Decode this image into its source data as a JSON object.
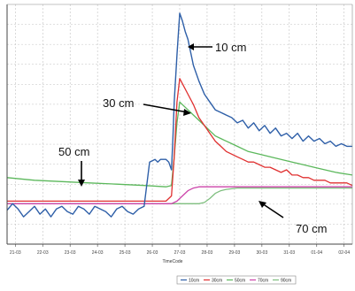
{
  "chart_data": {
    "type": "line",
    "xlabel": "TimeCode",
    "ylabel": "",
    "grid": true,
    "categories": [
      "21-03",
      "22-03",
      "23-03",
      "24-03",
      "25-03",
      "26-03",
      "27-03",
      "28-03",
      "29-03",
      "30-03",
      "31-03",
      "01-04",
      "02-04"
    ],
    "xlim": [
      0,
      12.6
    ],
    "ylim": [
      0,
      1
    ],
    "series": [
      {
        "name": "10 cm",
        "color": "#2e5fa8",
        "x": [
          0,
          0.2,
          0.4,
          0.6,
          0.8,
          1.0,
          1.2,
          1.4,
          1.6,
          1.8,
          2.0,
          2.2,
          2.4,
          2.6,
          2.8,
          3.0,
          3.2,
          3.4,
          3.6,
          3.8,
          4.0,
          4.2,
          4.4,
          4.6,
          4.8,
          5.0,
          5.2,
          5.4,
          5.5,
          5.6,
          5.8,
          5.9,
          6.0,
          6.05,
          6.1,
          6.2,
          6.3,
          6.4,
          6.5,
          6.6,
          6.8,
          7.0,
          7.2,
          7.4,
          7.6,
          7.8,
          8.0,
          8.2,
          8.4,
          8.6,
          8.8,
          9.0,
          9.2,
          9.4,
          9.6,
          9.8,
          10.0,
          10.2,
          10.4,
          10.6,
          10.8,
          11.0,
          11.2,
          11.4,
          11.6,
          11.8,
          12.0,
          12.2,
          12.4,
          12.6
        ],
        "values": [
          0.245,
          0.27,
          0.25,
          0.22,
          0.24,
          0.26,
          0.23,
          0.25,
          0.22,
          0.25,
          0.26,
          0.24,
          0.23,
          0.26,
          0.25,
          0.23,
          0.26,
          0.25,
          0.24,
          0.22,
          0.25,
          0.26,
          0.24,
          0.23,
          0.25,
          0.26,
          0.43,
          0.44,
          0.43,
          0.44,
          0.44,
          0.43,
          0.4,
          0.52,
          0.66,
          0.84,
          1.0,
          0.97,
          0.93,
          0.9,
          0.8,
          0.74,
          0.69,
          0.66,
          0.63,
          0.62,
          0.61,
          0.6,
          0.58,
          0.59,
          0.56,
          0.58,
          0.55,
          0.57,
          0.54,
          0.56,
          0.53,
          0.54,
          0.52,
          0.54,
          0.51,
          0.53,
          0.51,
          0.52,
          0.5,
          0.51,
          0.49,
          0.5,
          0.49,
          0.49
        ]
      },
      {
        "name": "30 cm",
        "color": "#e03030",
        "x": [
          0,
          1,
          2,
          3,
          4,
          5,
          5.8,
          6.0,
          6.1,
          6.2,
          6.3,
          6.4,
          6.6,
          6.8,
          7.0,
          7.2,
          7.4,
          7.6,
          7.8,
          8.0,
          8.2,
          8.4,
          8.6,
          8.8,
          9.0,
          9.2,
          9.4,
          9.6,
          9.8,
          10.0,
          10.2,
          10.4,
          10.6,
          10.8,
          11.0,
          11.2,
          11.4,
          11.6,
          11.8,
          12.0,
          12.2,
          12.4,
          12.6
        ],
        "values": [
          0.28,
          0.28,
          0.28,
          0.28,
          0.28,
          0.28,
          0.28,
          0.3,
          0.45,
          0.66,
          0.75,
          0.73,
          0.69,
          0.65,
          0.6,
          0.57,
          0.54,
          0.51,
          0.49,
          0.47,
          0.46,
          0.45,
          0.44,
          0.43,
          0.43,
          0.42,
          0.41,
          0.41,
          0.4,
          0.39,
          0.4,
          0.38,
          0.38,
          0.37,
          0.37,
          0.36,
          0.36,
          0.36,
          0.35,
          0.35,
          0.35,
          0.35,
          0.34
        ]
      },
      {
        "name": "50 cm",
        "color": "#5cb85c",
        "x": [
          0,
          1,
          2,
          3,
          4,
          5,
          5.8,
          6.0,
          6.1,
          6.2,
          6.3,
          6.4,
          6.6,
          6.8,
          7.0,
          7.2,
          7.4,
          7.6,
          7.8,
          8.0,
          8.4,
          8.8,
          9.2,
          9.6,
          10.0,
          10.4,
          10.8,
          11.2,
          11.6,
          12.0,
          12.6
        ],
        "values": [
          0.37,
          0.36,
          0.355,
          0.35,
          0.345,
          0.34,
          0.335,
          0.34,
          0.45,
          0.58,
          0.66,
          0.65,
          0.63,
          0.61,
          0.59,
          0.57,
          0.55,
          0.53,
          0.52,
          0.51,
          0.49,
          0.47,
          0.46,
          0.45,
          0.44,
          0.43,
          0.42,
          0.41,
          0.4,
          0.39,
          0.38
        ]
      },
      {
        "name": "70 cm",
        "color": "#cc44aa",
        "x": [
          0,
          1,
          2,
          3,
          4,
          5,
          5.8,
          6.0,
          6.2,
          6.4,
          6.6,
          6.8,
          7.0,
          7.4,
          7.8,
          8.2,
          8.6,
          9.0,
          9.4,
          9.8,
          10.2,
          10.6,
          11.0,
          11.4,
          11.8,
          12.2,
          12.6
        ],
        "values": [
          0.27,
          0.27,
          0.27,
          0.27,
          0.27,
          0.27,
          0.27,
          0.27,
          0.28,
          0.3,
          0.32,
          0.33,
          0.335,
          0.335,
          0.335,
          0.335,
          0.335,
          0.335,
          0.335,
          0.335,
          0.335,
          0.335,
          0.335,
          0.335,
          0.335,
          0.335,
          0.335
        ]
      },
      {
        "name": "90 cm",
        "color": "#7fbf7f",
        "x": [
          0,
          1,
          2,
          3,
          4,
          5,
          5.8,
          6.0,
          6.4,
          6.8,
          7.0,
          7.2,
          7.4,
          7.6,
          7.8,
          8.0,
          8.4,
          8.8,
          9.2,
          9.6,
          10.0,
          10.4,
          10.8,
          11.2,
          11.6,
          12.0,
          12.6
        ],
        "values": [
          0.27,
          0.27,
          0.27,
          0.27,
          0.27,
          0.27,
          0.27,
          0.27,
          0.27,
          0.27,
          0.27,
          0.275,
          0.29,
          0.31,
          0.32,
          0.325,
          0.33,
          0.33,
          0.33,
          0.33,
          0.33,
          0.33,
          0.33,
          0.33,
          0.33,
          0.33,
          0.33
        ]
      }
    ],
    "annotations": [
      {
        "text": "10 cm"
      },
      {
        "text": "30 cm"
      },
      {
        "text": "50 cm"
      },
      {
        "text": "70 cm"
      }
    ],
    "legend": {
      "position": "bottom",
      "entries": [
        "10cm",
        "30cm",
        "50cm",
        "70cm",
        "90cm"
      ]
    }
  }
}
